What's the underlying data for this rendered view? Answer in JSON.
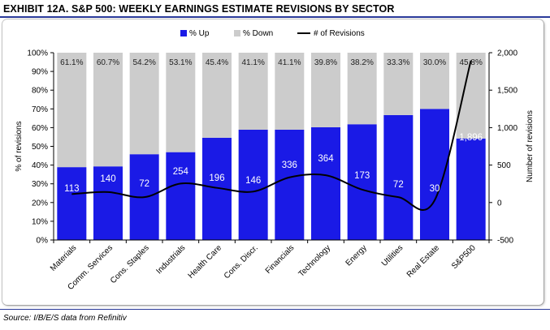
{
  "header": {
    "title": "EXHIBIT 12A.  S&P 500: WEEKLY EARNINGS ESTIMATE REVISIONS BY SECTOR"
  },
  "footer": {
    "source": "Source: I/B/E/S data from Refinitiv"
  },
  "colors": {
    "up": "#1a1ae6",
    "down": "#cccccc",
    "line": "#000000",
    "rule": "#2a3a9a"
  },
  "chart_data": {
    "type": "bar",
    "stacked": true,
    "categories": [
      "Materials",
      "Comm. Services",
      "Cons. Staples",
      "Industrials",
      "Health Care",
      "Cons. Discr.",
      "Financials",
      "Technology",
      "Energy",
      "Utilities",
      "Real Estate",
      "S&P500"
    ],
    "series": [
      {
        "name": "% Up",
        "axis": "left",
        "values": [
          38.9,
          39.3,
          45.8,
          46.9,
          54.6,
          58.9,
          58.9,
          60.2,
          61.8,
          66.7,
          70.0,
          54.2
        ]
      },
      {
        "name": "% Down",
        "axis": "left",
        "values": [
          61.1,
          60.7,
          54.2,
          53.1,
          45.4,
          41.1,
          41.1,
          39.8,
          38.2,
          33.3,
          30.0,
          45.8
        ]
      },
      {
        "name": "# of Revisions",
        "axis": "right",
        "type": "line",
        "values": [
          113,
          140,
          72,
          254,
          196,
          146,
          336,
          364,
          173,
          72,
          30,
          1896
        ]
      }
    ],
    "down_labels": [
      "61.1%",
      "60.7%",
      "54.2%",
      "53.1%",
      "45.4%",
      "41.1%",
      "41.1%",
      "39.8%",
      "38.2%",
      "33.3%",
      "30.0%",
      "45.8%"
    ],
    "count_labels": [
      "113",
      "140",
      "72",
      "254",
      "196",
      "146",
      "336",
      "364",
      "173",
      "72",
      "30",
      "1,896"
    ],
    "legend": [
      "% Up",
      "% Down",
      "# of Revisions"
    ],
    "legend_position": "top-center",
    "ylabel": "% of revisions",
    "y2label": "Number of revisions",
    "ylim": [
      0,
      100
    ],
    "y2lim": [
      -500,
      2000
    ],
    "y_ticks": [
      "0%",
      "10%",
      "20%",
      "30%",
      "40%",
      "50%",
      "60%",
      "70%",
      "80%",
      "90%",
      "100%"
    ],
    "y2_ticks": [
      "-500",
      "0",
      "500",
      "1,000",
      "1,500",
      "2,000"
    ],
    "grid": false
  }
}
